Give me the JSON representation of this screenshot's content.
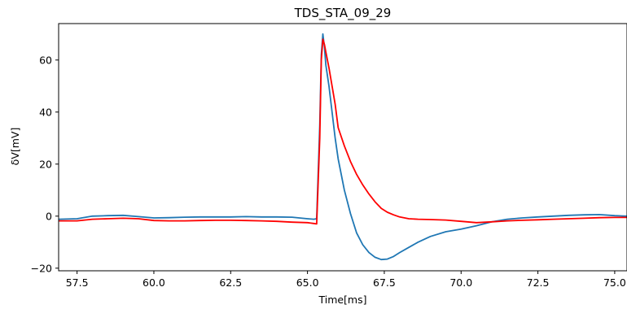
{
  "chart_data": {
    "type": "line",
    "title": "TDS_STA_09_29",
    "xlabel": "Time[ms]",
    "ylabel": "δV[mV]",
    "xlim": [
      56.9,
      75.4
    ],
    "ylim": [
      -21,
      74
    ],
    "grid": false,
    "x_ticks": [
      "57.5",
      "60.0",
      "62.5",
      "65.0",
      "67.5",
      "70.0",
      "72.5",
      "75.0"
    ],
    "x_tick_values": [
      57.5,
      60.0,
      62.5,
      65.0,
      67.5,
      70.0,
      72.5,
      75.0
    ],
    "y_ticks": [
      "60",
      "40",
      "20",
      "0",
      "−20"
    ],
    "y_tick_values": [
      60,
      40,
      20,
      0,
      -20
    ],
    "series": [
      {
        "color": "#1f77b4",
        "x": [
          56.9,
          57.5,
          58.0,
          58.5,
          59.0,
          59.5,
          60.0,
          60.5,
          61.0,
          61.5,
          62.0,
          62.5,
          63.0,
          63.5,
          64.0,
          64.5,
          65.0,
          65.2,
          65.3,
          65.4,
          65.45,
          65.5,
          65.55,
          65.6,
          65.7,
          65.8,
          65.9,
          66.0,
          66.2,
          66.4,
          66.6,
          66.8,
          67.0,
          67.2,
          67.4,
          67.6,
          67.8,
          68.0,
          68.3,
          68.6,
          69.0,
          69.5,
          70.0,
          70.5,
          71.0,
          71.5,
          72.0,
          72.5,
          73.0,
          73.5,
          74.0,
          74.5,
          75.0,
          75.4
        ],
        "y": [
          -1.2,
          -1.0,
          0.0,
          0.2,
          0.3,
          -0.2,
          -0.7,
          -0.6,
          -0.4,
          -0.3,
          -0.3,
          -0.3,
          -0.2,
          -0.3,
          -0.3,
          -0.4,
          -1.0,
          -1.2,
          -1.0,
          35.0,
          62.0,
          70.0,
          65.0,
          58.0,
          50.0,
          40.0,
          30.0,
          22.0,
          10.0,
          1.0,
          -6.5,
          -11.0,
          -14.0,
          -15.8,
          -16.7,
          -16.5,
          -15.5,
          -14.0,
          -12.0,
          -10.0,
          -7.8,
          -6.0,
          -5.0,
          -3.7,
          -2.2,
          -1.2,
          -0.7,
          -0.3,
          0.0,
          0.3,
          0.5,
          0.6,
          0.2,
          0.0
        ]
      },
      {
        "color": "#ff0000",
        "x": [
          56.9,
          57.5,
          58.0,
          58.5,
          59.0,
          59.5,
          60.0,
          60.5,
          61.0,
          61.5,
          62.0,
          62.5,
          63.0,
          63.5,
          64.0,
          64.5,
          65.0,
          65.2,
          65.3,
          65.4,
          65.45,
          65.5,
          65.55,
          65.6,
          65.7,
          65.8,
          65.9,
          66.0,
          66.2,
          66.4,
          66.6,
          66.8,
          67.0,
          67.2,
          67.4,
          67.6,
          67.8,
          68.0,
          68.3,
          68.6,
          69.0,
          69.5,
          70.0,
          70.5,
          71.0,
          71.5,
          72.0,
          72.5,
          73.0,
          73.5,
          74.0,
          74.5,
          75.0,
          75.4
        ],
        "y": [
          -1.8,
          -1.8,
          -1.2,
          -1.0,
          -0.8,
          -1.0,
          -1.7,
          -1.8,
          -1.8,
          -1.7,
          -1.6,
          -1.6,
          -1.7,
          -1.8,
          -2.0,
          -2.3,
          -2.5,
          -2.8,
          -3.0,
          30.0,
          60.0,
          68.0,
          66.0,
          63.0,
          57.0,
          50.0,
          43.0,
          34.0,
          27.0,
          21.0,
          16.0,
          12.0,
          8.5,
          5.5,
          3.0,
          1.5,
          0.5,
          -0.3,
          -1.0,
          -1.2,
          -1.3,
          -1.5,
          -2.0,
          -2.5,
          -2.2,
          -1.8,
          -1.6,
          -1.4,
          -1.2,
          -1.0,
          -0.8,
          -0.6,
          -0.5,
          -0.5
        ]
      }
    ]
  }
}
